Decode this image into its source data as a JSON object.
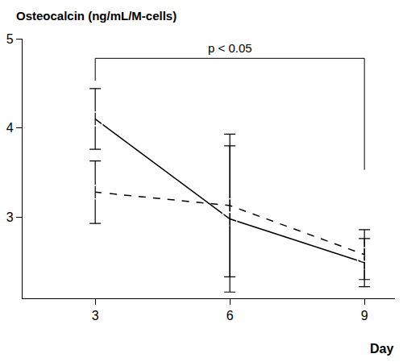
{
  "chart_data": {
    "type": "line",
    "y_label": "Osteocalcin (ng/mL/M-cells)",
    "x_label": "Day",
    "x": [
      3,
      6,
      9
    ],
    "series": [
      {
        "color": "#000000",
        "marker": "square-open",
        "line_style": "solid",
        "values": [
          4.1,
          2.98,
          2.49
        ],
        "errors": [
          0.34,
          0.82,
          0.27
        ]
      },
      {
        "color": "#000000",
        "marker": "circle-open",
        "line_style": "dash",
        "values": [
          3.28,
          3.13,
          2.58
        ],
        "errors": [
          0.35,
          0.8,
          0.28
        ]
      }
    ],
    "xlim": [
      1.38,
      9.68
    ],
    "xticks": [
      3,
      6,
      9
    ],
    "ylim": [
      2.09,
      5
    ],
    "yticks": [
      3,
      4,
      5
    ],
    "grid": false,
    "annotation": {
      "text": "p < 0.05",
      "x0": 3,
      "x1": 9,
      "y": 4.78
    }
  }
}
